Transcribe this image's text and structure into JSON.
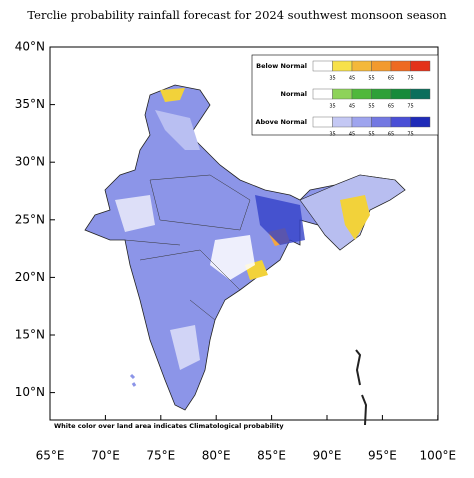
{
  "title": "Terclie probability rainfall forecast for 2024 southwest monsoon  season",
  "lat_labels": [
    "40°N",
    "35°N",
    "30°N",
    "25°N",
    "20°N",
    "15°N",
    "10°N"
  ],
  "lon_labels": [
    "65°E",
    "70°E",
    "75°E",
    "80°E",
    "85°E",
    "90°E",
    "95°E",
    "100°E"
  ],
  "legend": [
    {
      "label": "Below Normal",
      "ticks": [
        "35",
        "45",
        "55",
        "65",
        "75"
      ]
    },
    {
      "label": "Normal",
      "ticks": [
        "35",
        "45",
        "55",
        "65",
        "75"
      ]
    },
    {
      "label": "Above Normal",
      "ticks": [
        "35",
        "45",
        "55",
        "65",
        "75"
      ]
    }
  ],
  "note": "White color over land area indicates Climatological probability"
}
